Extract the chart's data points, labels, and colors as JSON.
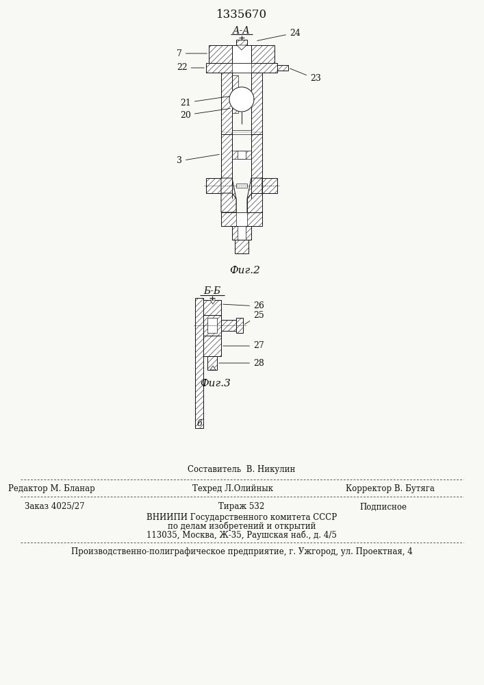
{
  "patent_number": "1335670",
  "fig2_label": "Фиг.2",
  "fig3_label": "Фиг.3",
  "section_AA": "А-А",
  "section_BB": "Б-Б",
  "bg_color": "#f8f8f4",
  "line_color": "#111111",
  "footer_line_sestavitel": "Составитель  В. Никулин",
  "footer_redaktor": "Редактор М. Бланар",
  "footer_tekhred": "Техред Л.Олийнык",
  "footer_korrektor": "Корректор В. Бутяга",
  "footer_zakaz": "Заказ 4025/27",
  "footer_tirazh": "Тираж 532",
  "footer_podpisnoe": "Подписное",
  "footer_vniipи": "ВНИИПИ Государственного комитета СССР",
  "footer_podel": "по делам изобретений и открытий",
  "footer_addr": "113035, Москва, Ж-35, Раушская наб., д. 4/5",
  "footer_last": "Производственно-полиграфическое предприятие, г. Ужгород, ул. Проектная, 4"
}
